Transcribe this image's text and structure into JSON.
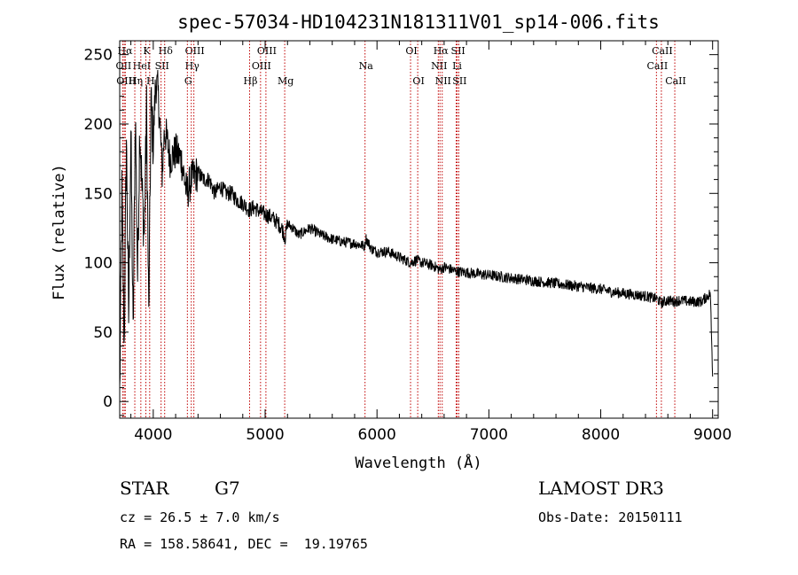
{
  "chart_data": {
    "type": "line",
    "title": "spec-57034-HD104231N181311V01_sp14-006.fits",
    "xlabel": "Wavelength (Å)",
    "ylabel": "Flux (relative)",
    "xlim": [
      3700,
      9050
    ],
    "ylim": [
      -12,
      260
    ],
    "xticks": [
      4000,
      5000,
      6000,
      7000,
      8000,
      9000
    ],
    "yticks": [
      0,
      50,
      100,
      150,
      200,
      250
    ],
    "series": [
      {
        "name": "flux",
        "x": [
          3700,
          3720,
          3740,
          3760,
          3780,
          3800,
          3820,
          3840,
          3860,
          3880,
          3900,
          3920,
          3940,
          3960,
          3980,
          4000,
          4020,
          4040,
          4060,
          4080,
          4100,
          4120,
          4150,
          4200,
          4250,
          4300,
          4340,
          4400,
          4450,
          4500,
          4550,
          4600,
          4650,
          4700,
          4750,
          4800,
          4860,
          4900,
          4950,
          5000,
          5050,
          5100,
          5150,
          5180,
          5200,
          5250,
          5300,
          5400,
          5500,
          5600,
          5700,
          5800,
          5890,
          5900,
          5950,
          6000,
          6100,
          6200,
          6300,
          6350,
          6400,
          6500,
          6563,
          6600,
          6700,
          6800,
          6900,
          7000,
          7100,
          7200,
          7300,
          7400,
          7500,
          7600,
          7700,
          7800,
          7900,
          8000,
          8100,
          8200,
          8300,
          8400,
          8500,
          8542,
          8600,
          8662,
          8700,
          8800,
          8900,
          8980,
          9000
        ],
        "values": [
          5,
          150,
          40,
          190,
          60,
          195,
          45,
          210,
          90,
          200,
          150,
          120,
          210,
          60,
          215,
          185,
          230,
          225,
          200,
          165,
          195,
          190,
          175,
          180,
          175,
          150,
          160,
          165,
          160,
          160,
          150,
          155,
          150,
          150,
          145,
          143,
          138,
          140,
          137,
          135,
          133,
          130,
          125,
          118,
          128,
          125,
          120,
          125,
          120,
          117,
          115,
          114,
          112,
          118,
          110,
          108,
          108,
          104,
          100,
          102,
          100,
          98,
          95,
          97,
          94,
          93,
          92,
          91,
          90,
          89,
          88,
          87,
          86,
          85,
          84,
          83,
          82,
          81,
          79,
          78,
          77,
          76,
          74,
          71,
          73,
          72,
          73,
          72,
          72,
          78,
          18
        ]
      }
    ],
    "spectral_lines": [
      {
        "label": "Hα",
        "wavelength": 3740,
        "row": 1
      },
      {
        "label": "K",
        "wavelength": 3934,
        "row": 1
      },
      {
        "label": "Hδ",
        "wavelength": 4102,
        "row": 1
      },
      {
        "label": "OIII",
        "wavelength": 4363,
        "row": 1
      },
      {
        "label": "OIII",
        "wavelength": 5007,
        "row": 1
      },
      {
        "label": "OI",
        "wavelength": 6300,
        "row": 1
      },
      {
        "label": "Hα",
        "wavelength": 6563,
        "row": 1
      },
      {
        "label": "SII",
        "wavelength": 6717,
        "row": 1
      },
      {
        "label": "CaII",
        "wavelength": 8542,
        "row": 1
      },
      {
        "label": "OII",
        "wavelength": 3727,
        "row": 2
      },
      {
        "label": "HeI",
        "wavelength": 3889,
        "row": 2
      },
      {
        "label": "SII",
        "wavelength": 4070,
        "row": 2
      },
      {
        "label": "Hγ",
        "wavelength": 4340,
        "row": 2
      },
      {
        "label": "OIII",
        "wavelength": 4959,
        "row": 2
      },
      {
        "label": "Na",
        "wavelength": 5893,
        "row": 2
      },
      {
        "label": "NII",
        "wavelength": 6548,
        "row": 2
      },
      {
        "label": "Li",
        "wavelength": 6708,
        "row": 2
      },
      {
        "label": "CaII",
        "wavelength": 8498,
        "row": 2
      },
      {
        "label": "OIII",
        "wavelength": 3750,
        "row": 3
      },
      {
        "label": "Hη",
        "wavelength": 3835,
        "row": 3
      },
      {
        "label": "H",
        "wavelength": 3968,
        "row": 3
      },
      {
        "label": "G",
        "wavelength": 4305,
        "row": 3
      },
      {
        "label": "Hβ",
        "wavelength": 4861,
        "row": 3
      },
      {
        "label": "Mg",
        "wavelength": 5175,
        "row": 3
      },
      {
        "label": "OI",
        "wavelength": 6364,
        "row": 3
      },
      {
        "label": "NII",
        "wavelength": 6583,
        "row": 3
      },
      {
        "label": "SII",
        "wavelength": 6731,
        "row": 3
      },
      {
        "label": "CaII",
        "wavelength": 8662,
        "row": 3
      }
    ]
  },
  "info": {
    "class": "STAR",
    "subclass": "G7",
    "survey": "LAMOST DR3",
    "cz": "cz = 26.5 ± 7.0 km/s",
    "obsdate": "Obs-Date: 20150111",
    "radec": "RA = 158.58641, DEC =  19.19765"
  }
}
